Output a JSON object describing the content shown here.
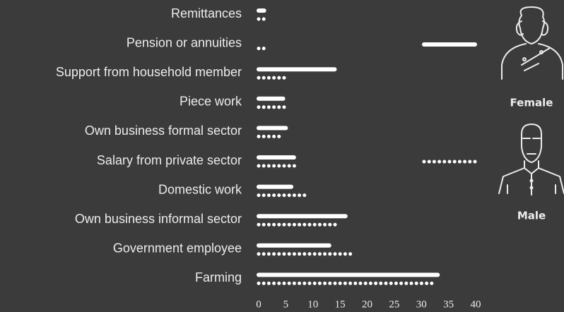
{
  "chart_data": {
    "type": "hbar",
    "categories": [
      "Remittances",
      "Pension or annuities",
      "Support from household member",
      "Piece work",
      "Own business formal sector",
      "Salary from private sector",
      "Domestic work",
      "Own business informal sector",
      "Government employee",
      "Farming"
    ],
    "series": [
      {
        "name": "Female",
        "color": "#ffffff",
        "style": "solid",
        "values": [
          1,
          0,
          14,
          4.5,
          5,
          6.5,
          6,
          16,
          13,
          33
        ]
      },
      {
        "name": "Male",
        "color": "#ffffff",
        "style": "dotted",
        "values": [
          1,
          1,
          5,
          5.5,
          4.5,
          7,
          9,
          15,
          17.5,
          32
        ]
      }
    ],
    "xlim": [
      0,
      40
    ],
    "xticks": [
      0,
      5,
      10,
      15,
      20,
      25,
      30,
      35,
      40
    ],
    "grid": false
  }
}
